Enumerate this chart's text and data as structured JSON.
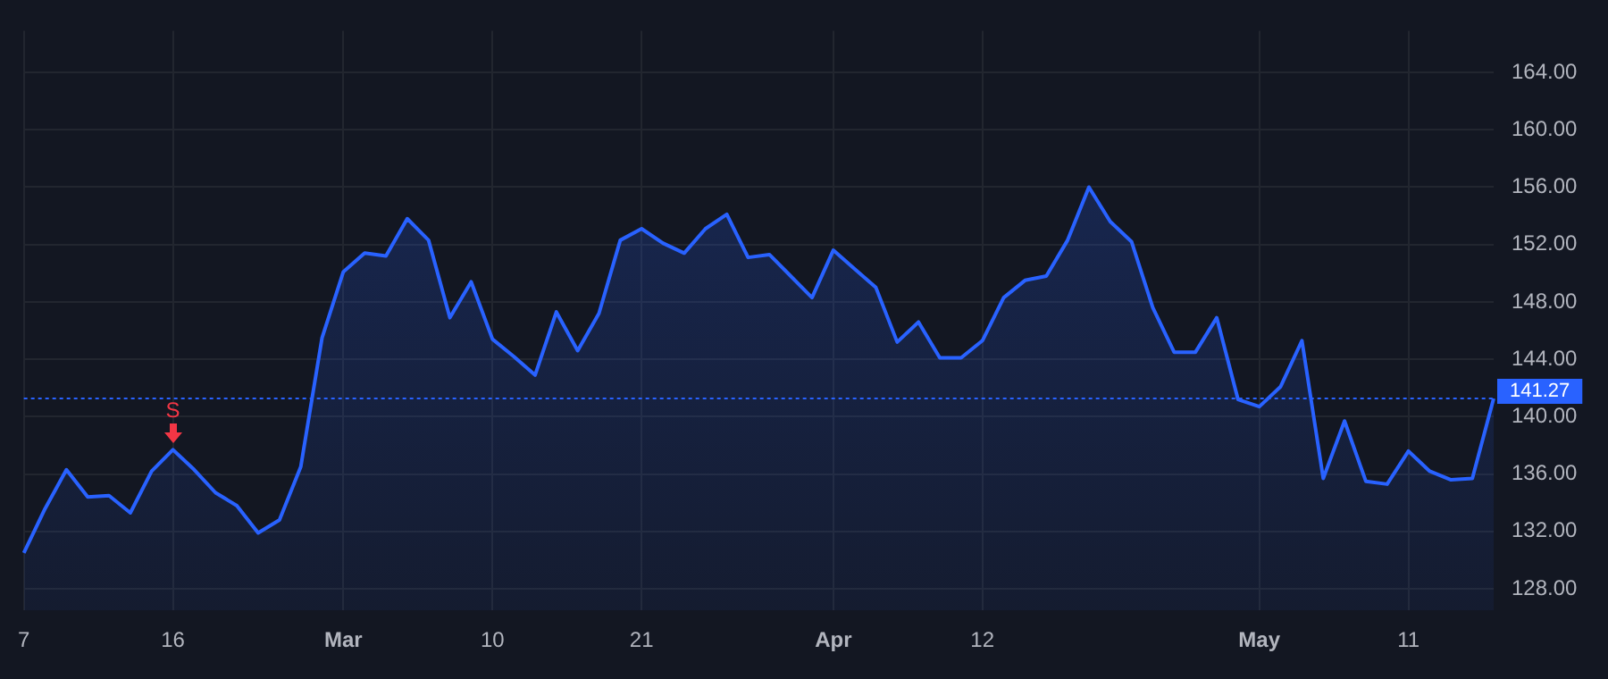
{
  "chart_data": {
    "type": "area",
    "categories": [
      "7",
      null,
      null,
      null,
      null,
      null,
      null,
      "16",
      null,
      null,
      null,
      null,
      null,
      null,
      null,
      "Mar",
      null,
      null,
      null,
      null,
      null,
      null,
      "10",
      null,
      null,
      null,
      null,
      null,
      null,
      "21",
      null,
      null,
      null,
      null,
      null,
      null,
      null,
      null,
      "Apr",
      null,
      null,
      null,
      null,
      null,
      null,
      "12",
      null,
      null,
      null,
      null,
      null,
      null,
      null,
      null,
      null,
      null,
      null,
      null,
      "May",
      null,
      null,
      null,
      null,
      null,
      null,
      "11",
      null,
      null,
      null,
      null
    ],
    "series": [
      {
        "color": "#2962ff",
        "values": [
          130.5,
          133.6,
          136.3,
          134.4,
          134.5,
          133.3,
          136.2,
          137.7,
          136.3,
          134.7,
          133.8,
          131.9,
          132.8,
          136.5,
          145.5,
          150.1,
          151.4,
          151.2,
          153.8,
          152.3,
          146.9,
          149.4,
          145.4,
          144.2,
          142.9,
          147.3,
          144.6,
          147.2,
          152.3,
          153.1,
          152.1,
          151.4,
          153.1,
          154.1,
          151.1,
          151.3,
          149.8,
          148.3,
          151.6,
          150.3,
          149.0,
          145.2,
          146.6,
          144.1,
          144.1,
          145.3,
          148.3,
          149.5,
          149.8,
          152.3,
          156.0,
          153.6,
          152.2,
          147.6,
          144.5,
          144.5,
          146.9,
          141.2,
          140.7,
          142.1,
          145.3,
          135.7,
          139.7,
          135.5,
          135.3,
          137.6,
          136.2,
          135.6,
          135.7,
          141.27
        ]
      }
    ],
    "ylim": [
      126.5,
      166.9
    ],
    "yticks": [
      {
        "value": 128,
        "label": "128.00"
      },
      {
        "value": 132,
        "label": "132.00"
      },
      {
        "value": 136,
        "label": "136.00"
      },
      {
        "value": 140,
        "label": "140.00"
      },
      {
        "value": 144,
        "label": "144.00"
      },
      {
        "value": 148,
        "label": "148.00"
      },
      {
        "value": 152,
        "label": "152.00"
      },
      {
        "value": 156,
        "label": "156.00"
      },
      {
        "value": 160,
        "label": "160.00"
      },
      {
        "value": 164,
        "label": "164.00"
      }
    ],
    "ref_lines": [
      {
        "axis": "y",
        "value": 141.27,
        "label": "141.27",
        "color": "#2962ff",
        "line_style": "dotted"
      }
    ],
    "annotations": [
      {
        "text": "S",
        "x": "16",
        "y": 137.7
      }
    ],
    "grid": true,
    "legend": false
  }
}
